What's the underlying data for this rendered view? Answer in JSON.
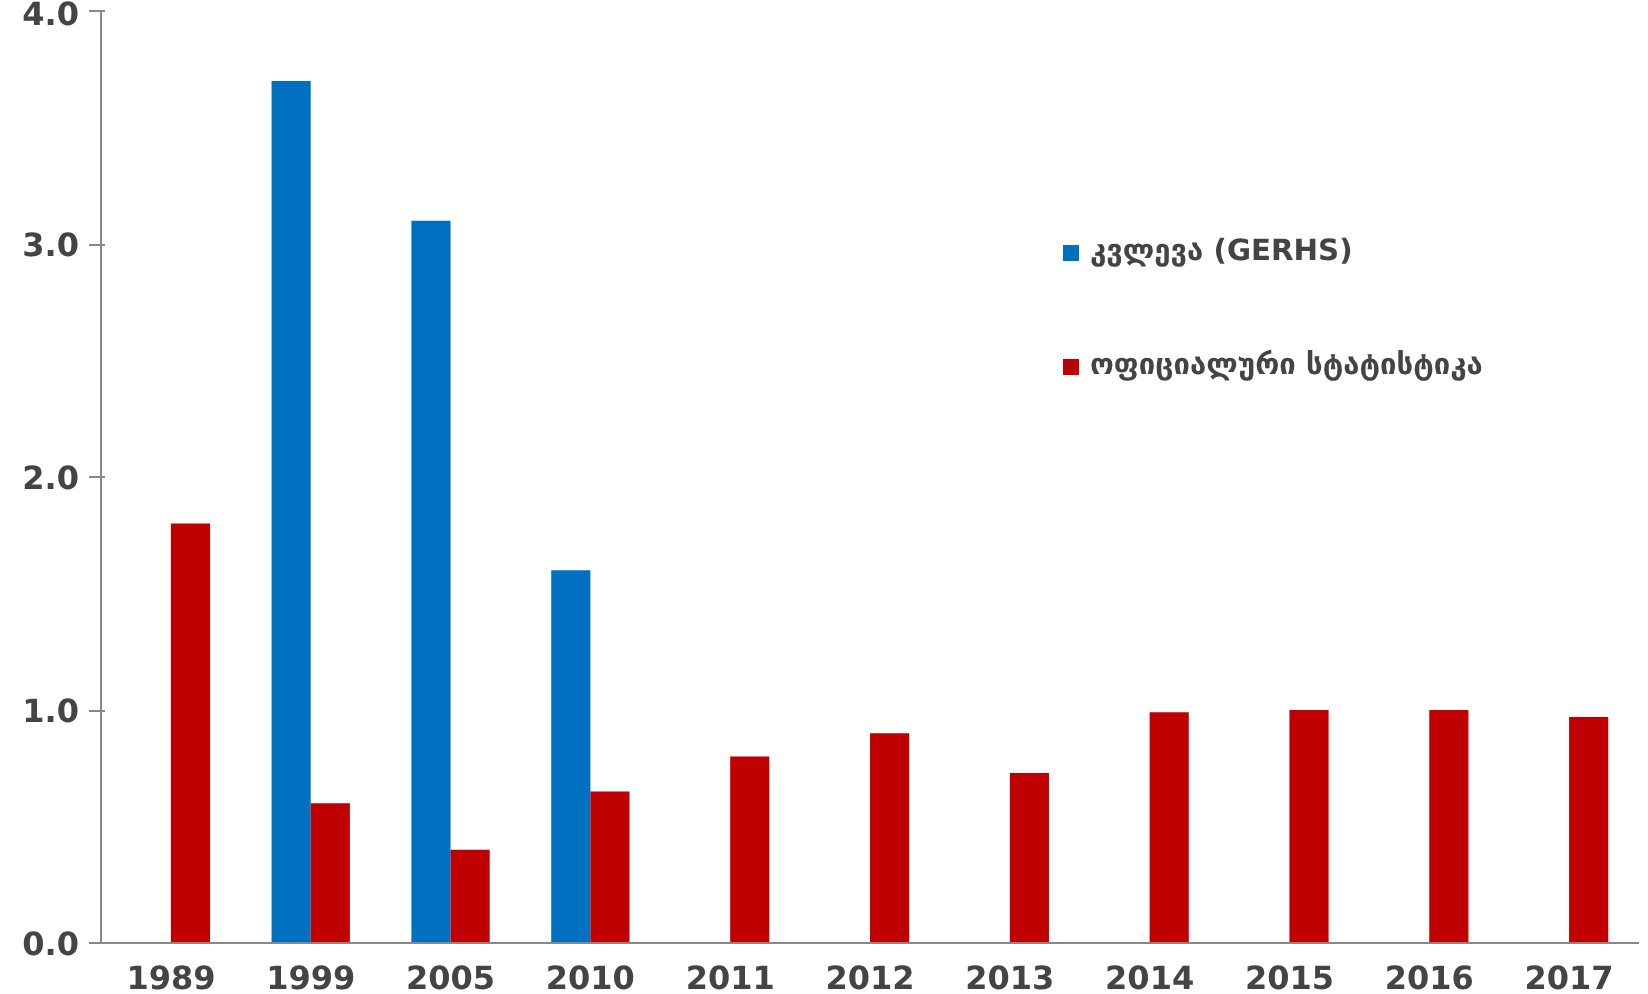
{
  "chart_data": {
    "type": "bar",
    "categories": [
      "1989",
      "1999",
      "2005",
      "2010",
      "2011",
      "2012",
      "2013",
      "2014",
      "2015",
      "2016",
      "2017"
    ],
    "series": [
      {
        "name": "კვლევა (GERHS)",
        "color": "#0070c0",
        "values": [
          null,
          3.7,
          3.1,
          1.6,
          null,
          null,
          null,
          null,
          null,
          null,
          null
        ]
      },
      {
        "name": "ოფიციალური სტატისტიკა",
        "color": "#c00000",
        "values": [
          1.8,
          0.6,
          0.4,
          0.65,
          0.8,
          0.9,
          0.73,
          0.99,
          1.0,
          1.0,
          0.97
        ]
      }
    ],
    "ylim": [
      0,
      4
    ],
    "yticks": [
      {
        "value": 0,
        "label": "0.0"
      },
      {
        "value": 1,
        "label": "1.0"
      },
      {
        "value": 2,
        "label": "2.0"
      },
      {
        "value": 3,
        "label": "3.0"
      },
      {
        "value": 4,
        "label": "4.0"
      }
    ],
    "grid": false,
    "legend": "right"
  }
}
